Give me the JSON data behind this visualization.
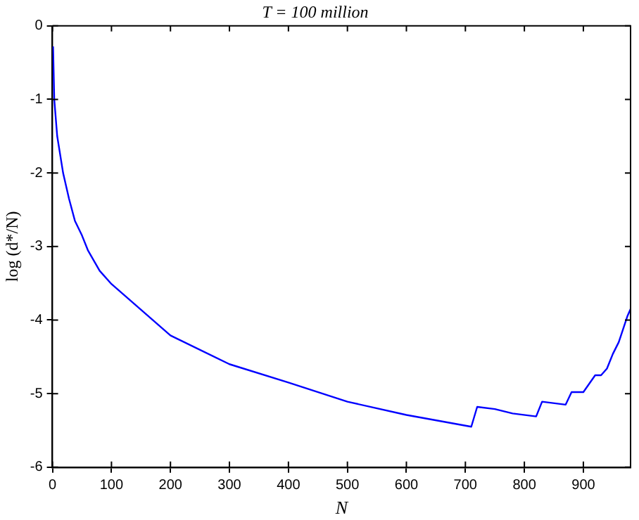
{
  "chart_data": {
    "type": "line",
    "title": "T = 100 million",
    "xlabel": "N",
    "ylabel": "log (d*/N)",
    "x": [
      1,
      3,
      8,
      18,
      28,
      38,
      50,
      60,
      80,
      100,
      200,
      300,
      400,
      500,
      600,
      710,
      720,
      750,
      780,
      820,
      830,
      870,
      880,
      900,
      920,
      930,
      940,
      950,
      960,
      975,
      980
    ],
    "series": [
      {
        "color": "#0000ff",
        "values": [
          -0.28,
          -1.0,
          -1.5,
          -2.0,
          -2.35,
          -2.65,
          -2.85,
          -3.05,
          -3.33,
          -3.51,
          -4.21,
          -4.6,
          -4.85,
          -5.11,
          -5.29,
          -5.45,
          -5.18,
          -5.21,
          -5.27,
          -5.31,
          -5.11,
          -5.15,
          -4.98,
          -4.98,
          -4.75,
          -4.75,
          -4.66,
          -4.46,
          -4.3,
          -3.94,
          -3.85
        ]
      }
    ],
    "xlim": [
      0,
      980
    ],
    "xticks": [
      0,
      100,
      200,
      300,
      400,
      500,
      600,
      700,
      800,
      900
    ],
    "ylim": [
      -6,
      0
    ],
    "yticks": [
      -6,
      -5,
      -4,
      -3,
      -2,
      -1,
      0
    ],
    "grid": false,
    "legend": false,
    "marker": "none",
    "line_style": "solid"
  }
}
